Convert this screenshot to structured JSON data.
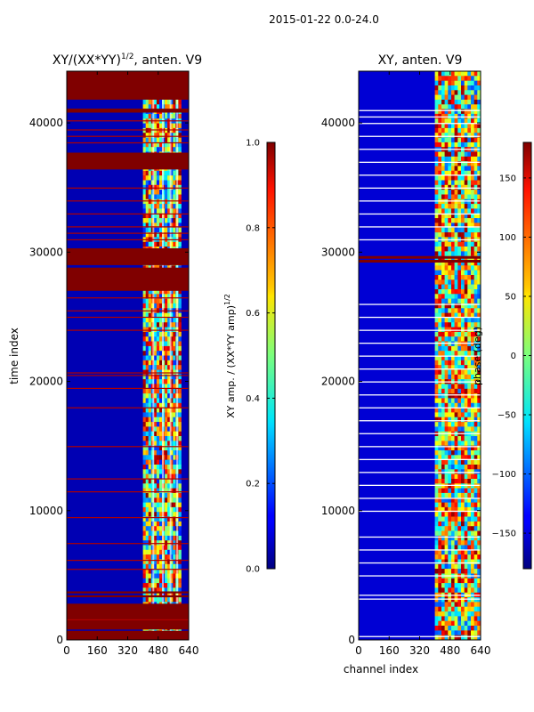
{
  "figure_title": "2015-01-22 0.0-24.0",
  "chart_data": [
    {
      "type": "heatmap",
      "title_main": "XY/(XX*YY)",
      "title_exp": "1/2",
      "title_rest": ", anten. V9",
      "xlabel": "",
      "ylabel": "time index",
      "x_ticks": [
        0,
        160,
        320,
        480,
        640
      ],
      "y_ticks": [
        0,
        10000,
        20000,
        30000,
        40000
      ],
      "xlim": [
        0,
        640
      ],
      "ylim": [
        0,
        44000
      ],
      "colorbar": {
        "label_main": "XY amp. / (XX*YY amp)",
        "label_exp": "1/2",
        "ticks": [
          0.0,
          0.2,
          0.4,
          0.6,
          0.8,
          1.0
        ],
        "tick_labels": [
          "0.0",
          "0.2",
          "0.4",
          "0.6",
          "0.8",
          "1.0"
        ],
        "range": [
          0.0,
          1.0
        ]
      },
      "colormap": "jet",
      "background_value": 0.05,
      "active_band": [
        400,
        600
      ],
      "saturated_bands": [
        [
          0,
          700
        ],
        [
          800,
          2800
        ],
        [
          3300,
          3450
        ],
        [
          3600,
          3750
        ],
        [
          27000,
          28800
        ],
        [
          29000,
          30300
        ],
        [
          36400,
          37700
        ],
        [
          40800,
          41100
        ],
        [
          41800,
          44000
        ]
      ],
      "thin_lines": [
        1600,
        5500,
        6200,
        7500,
        9500,
        11500,
        12500,
        15000,
        18000,
        19500,
        20500,
        20700,
        24000,
        25000,
        25500,
        26500,
        31000,
        31500,
        32000,
        33000,
        34000,
        35000,
        38500,
        39000,
        39500,
        40200
      ]
    },
    {
      "type": "heatmap",
      "title": "XY, anten. V9",
      "xlabel": "channel index",
      "ylabel": "",
      "x_ticks": [
        0,
        160,
        320,
        480,
        640
      ],
      "y_ticks": [
        0,
        10000,
        20000,
        30000,
        40000
      ],
      "xlim": [
        0,
        640
      ],
      "ylim": [
        0,
        44000
      ],
      "colorbar": {
        "label": "phase (deg)",
        "ticks": [
          -150,
          -100,
          -50,
          0,
          50,
          100,
          150
        ],
        "tick_labels": [
          "−150",
          "−100",
          "−50",
          "0",
          "50",
          "100",
          "150"
        ],
        "range": [
          -180,
          180
        ]
      },
      "colormap": "jet",
      "background_value": -150,
      "active_band": [
        400,
        640
      ],
      "white_lines": [
        300,
        3200,
        3500,
        5000,
        6000,
        7000,
        8000,
        10000,
        11000,
        12000,
        13000,
        14000,
        15000,
        16000,
        17000,
        18000,
        19000,
        20000,
        21000,
        22000,
        23000,
        24000,
        25000,
        26000,
        31000,
        32000,
        33000,
        34000,
        35000,
        36000,
        37000,
        38000,
        39000,
        40000,
        40500,
        41000
      ],
      "saturated_lines": [
        29400,
        29700
      ]
    }
  ]
}
